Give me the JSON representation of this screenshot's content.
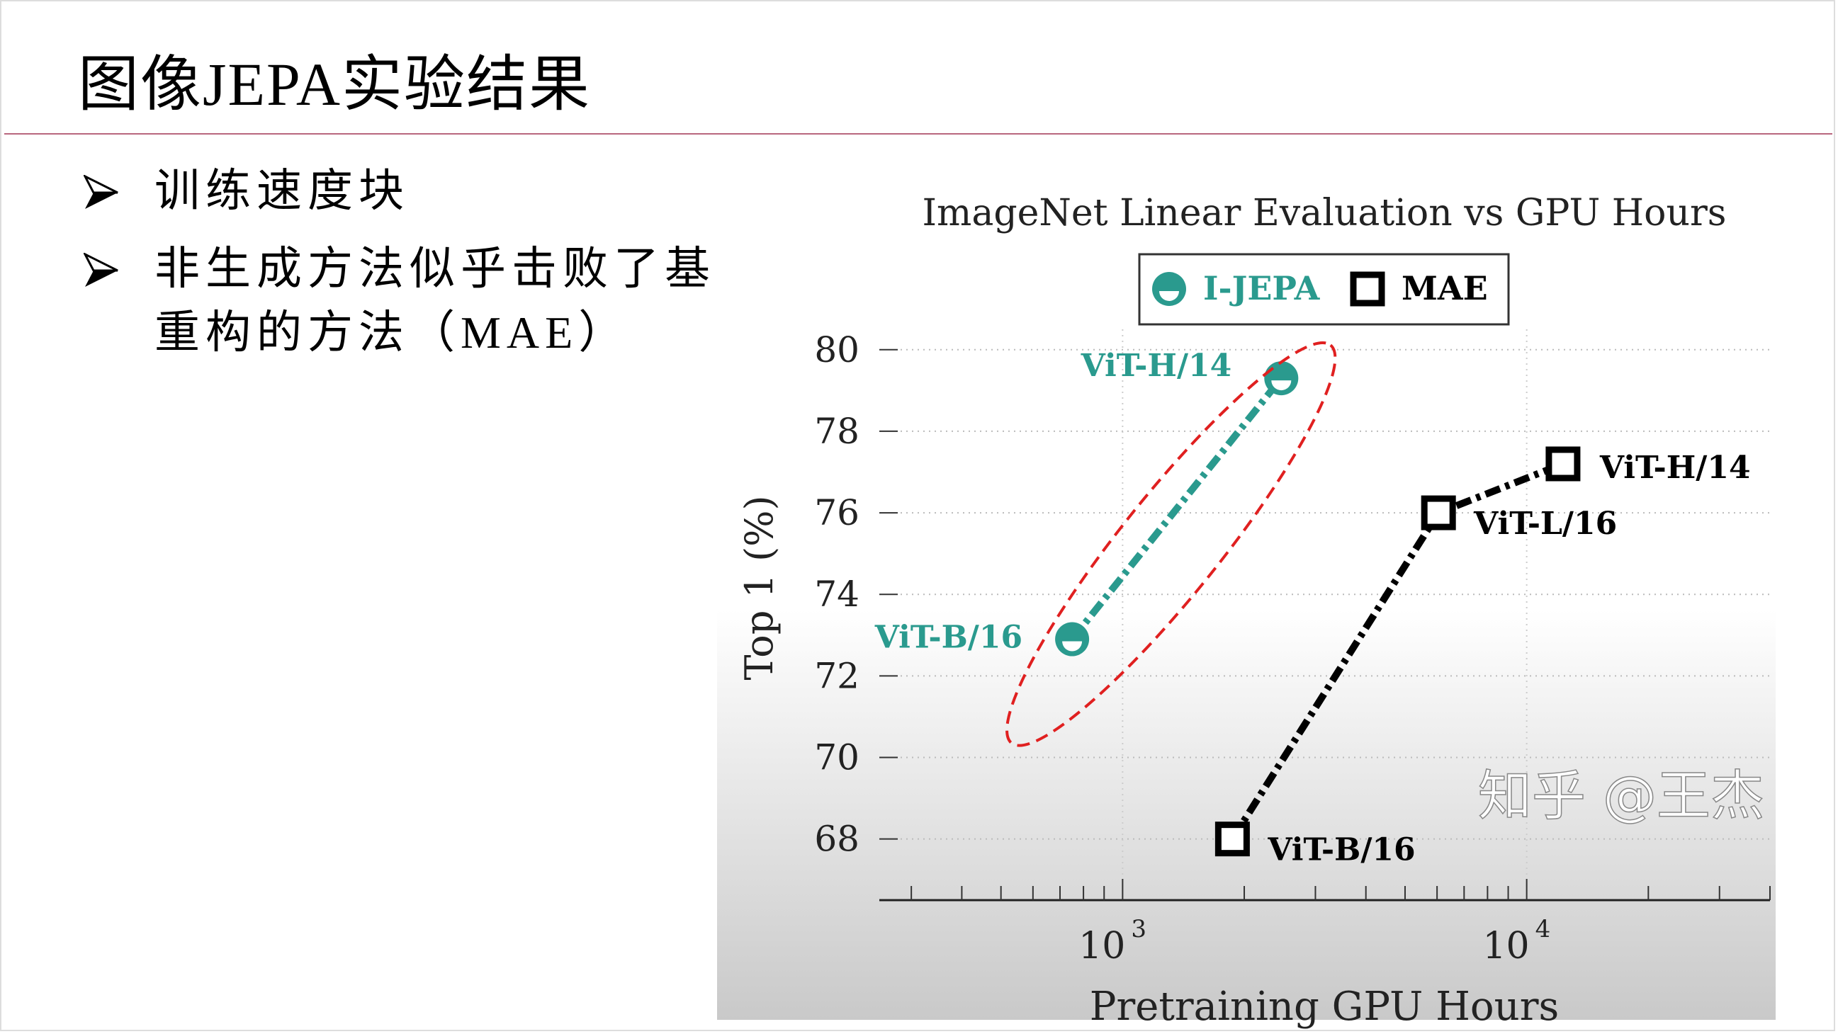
{
  "slide": {
    "title": "图像JEPA实验结果",
    "bullets": [
      "训练速度块",
      "非生成方法似乎击败了基于",
      "重构的方法（MAE）"
    ],
    "accent_rule_color": "#b8667e",
    "bullet_icon": "arrowhead-icon"
  },
  "watermark": "知乎 @王杰",
  "chart_data": {
    "type": "line",
    "title": "ImageNet Linear Evaluation vs GPU Hours",
    "xlabel": "Pretraining GPU Hours",
    "ylabel": "Top 1 (%)",
    "xscale": "log",
    "xlim": [
      250,
      40000
    ],
    "ylim": [
      66.5,
      80.5
    ],
    "xticks": [
      {
        "value": 1000,
        "label": "10",
        "exp": "3"
      },
      {
        "value": 10000,
        "label": "10",
        "exp": "4"
      }
    ],
    "yticks": [
      68,
      70,
      72,
      74,
      76,
      78,
      80
    ],
    "ytick_labels": [
      "68",
      "70",
      "72",
      "74",
      "76",
      "78",
      "80"
    ],
    "grid": true,
    "legend_position": "top-center",
    "series": [
      {
        "name": "I-JEPA",
        "color": "#2a9a8e",
        "marker": "half-filled-circle",
        "line": "dash-dot",
        "points": [
          {
            "x": 750,
            "y": 72.9,
            "label": "ViT-B/16"
          },
          {
            "x": 2470,
            "y": 79.3,
            "label": "ViT-H/14"
          }
        ]
      },
      {
        "name": "MAE",
        "color": "#000000",
        "marker": "open-square",
        "line": "dash-dot",
        "points": [
          {
            "x": 1870,
            "y": 68.0,
            "label": "ViT-B/16"
          },
          {
            "x": 6050,
            "y": 76.0,
            "label": "ViT-L/16"
          },
          {
            "x": 12300,
            "y": 77.2,
            "label": "ViT-H/14"
          }
        ]
      }
    ],
    "annotation": {
      "shape": "dashed-ellipse",
      "color": "#e02020",
      "target": "I-JEPA"
    }
  }
}
